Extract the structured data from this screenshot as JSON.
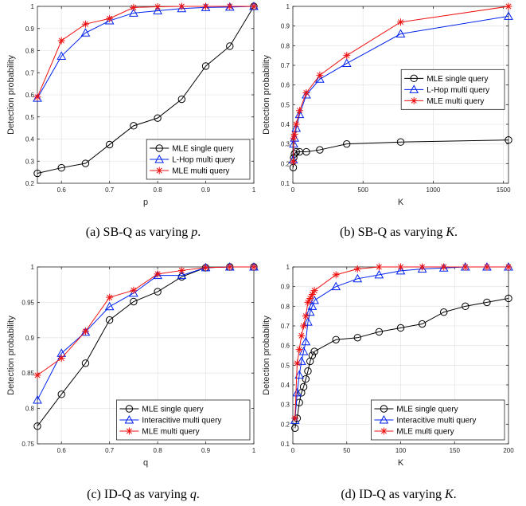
{
  "colors": {
    "series_black": "#000000",
    "series_blue": "#0022ee",
    "series_red": "#ee1111",
    "axis": "#262626",
    "grid": "#e6e6e6"
  },
  "chart_data": [
    {
      "type": "line",
      "caption": "(a) SB-Q as varying p.",
      "caption_prefix": "(a) SB-Q as varying ",
      "caption_var": "p",
      "caption_suffix": ".",
      "xlabel": "p",
      "ylabel": "Detection probability",
      "xlim": [
        0.55,
        1
      ],
      "ylim": [
        0.2,
        1
      ],
      "xticks": [
        0.6,
        0.7,
        0.8,
        0.9,
        1
      ],
      "xtick_labels": [
        "0.6",
        "0.7",
        "0.8",
        "0.9",
        "1"
      ],
      "yticks": [
        0.2,
        0.3,
        0.4,
        0.5,
        0.6,
        0.7,
        0.8,
        0.9,
        1
      ],
      "ytick_labels": [
        "0.2",
        "0.3",
        "0.4",
        "0.5",
        "0.6",
        "0.7",
        "0.8",
        "0.9",
        "1"
      ],
      "grid": true,
      "legend": "bottom-right",
      "series": [
        {
          "name": "MLE single query",
          "marker": "circle",
          "color": "#000000",
          "x": [
            0.55,
            0.6,
            0.65,
            0.7,
            0.75,
            0.8,
            0.85,
            0.9,
            0.95,
            1.0
          ],
          "y": [
            0.245,
            0.27,
            0.29,
            0.375,
            0.46,
            0.495,
            0.58,
            0.73,
            0.82,
            1.0
          ]
        },
        {
          "name": "L-Hop multi query",
          "marker": "triangle",
          "color": "#0022ee",
          "x": [
            0.55,
            0.6,
            0.65,
            0.7,
            0.75,
            0.8,
            0.85,
            0.9,
            0.95,
            1.0
          ],
          "y": [
            0.585,
            0.775,
            0.88,
            0.935,
            0.97,
            0.98,
            0.99,
            0.995,
            0.997,
            1.0
          ]
        },
        {
          "name": "MLE multi query",
          "marker": "star",
          "color": "#ee1111",
          "x": [
            0.55,
            0.6,
            0.65,
            0.7,
            0.75,
            0.8,
            0.85,
            0.9,
            0.95,
            1.0
          ],
          "y": [
            0.59,
            0.845,
            0.92,
            0.945,
            0.995,
            0.998,
            1.0,
            1.0,
            1.0,
            1.0
          ]
        }
      ]
    },
    {
      "type": "line",
      "caption": "(b) SB-Q as varying K.",
      "caption_prefix": "(b) SB-Q as varying ",
      "caption_var": "K",
      "caption_suffix": ".",
      "xlabel": "K",
      "ylabel": "Detection probability",
      "xlim": [
        0,
        1536
      ],
      "ylim": [
        0.1,
        1
      ],
      "xticks": [
        0,
        500,
        1000,
        1500
      ],
      "xtick_labels": [
        "0",
        "500",
        "1000",
        "1500"
      ],
      "yticks": [
        0.1,
        0.2,
        0.3,
        0.4,
        0.5,
        0.6,
        0.7,
        0.8,
        0.9,
        1
      ],
      "ytick_labels": [
        "0.1",
        "0.2",
        "0.3",
        "0.4",
        "0.5",
        "0.6",
        "0.7",
        "0.8",
        "0.9",
        "1"
      ],
      "grid": true,
      "legend": "middle-right",
      "series": [
        {
          "name": "MLE single query",
          "marker": "circle",
          "color": "#000000",
          "x": [
            3,
            6,
            12,
            24,
            48,
            96,
            192,
            384,
            768,
            1536
          ],
          "y": [
            0.18,
            0.23,
            0.25,
            0.26,
            0.26,
            0.26,
            0.27,
            0.3,
            0.31,
            0.32
          ]
        },
        {
          "name": "L-Hop multi query",
          "marker": "triangle",
          "color": "#0022ee",
          "x": [
            3,
            6,
            12,
            24,
            48,
            96,
            192,
            384,
            768,
            1536
          ],
          "y": [
            0.22,
            0.3,
            0.33,
            0.38,
            0.45,
            0.55,
            0.63,
            0.71,
            0.86,
            0.95
          ]
        },
        {
          "name": "MLE multi query",
          "marker": "star",
          "color": "#ee1111",
          "x": [
            3,
            6,
            12,
            24,
            48,
            96,
            192,
            384,
            768,
            1536
          ],
          "y": [
            0.21,
            0.33,
            0.35,
            0.4,
            0.47,
            0.56,
            0.65,
            0.75,
            0.92,
            1.0
          ]
        }
      ]
    },
    {
      "type": "line",
      "caption": "(c) ID-Q as varying q.",
      "caption_prefix": "(c) ID-Q as varying ",
      "caption_var": "q",
      "caption_suffix": ".",
      "xlabel": "q",
      "ylabel": "Detection probability",
      "xlim": [
        0.55,
        1
      ],
      "ylim": [
        0.75,
        1
      ],
      "xticks": [
        0.6,
        0.7,
        0.8,
        0.9,
        1
      ],
      "xtick_labels": [
        "0.6",
        "0.7",
        "0.8",
        "0.9",
        "1"
      ],
      "yticks": [
        0.75,
        0.8,
        0.85,
        0.9,
        0.95,
        1
      ],
      "ytick_labels": [
        "0.75",
        "0.8",
        "0.85",
        "0.9",
        "0.95",
        "1"
      ],
      "grid": true,
      "legend": "bottom-right",
      "series": [
        {
          "name": "MLE single query",
          "marker": "circle",
          "color": "#000000",
          "x": [
            0.55,
            0.6,
            0.65,
            0.7,
            0.75,
            0.8,
            0.85,
            0.9,
            0.95,
            1.0
          ],
          "y": [
            0.775,
            0.82,
            0.864,
            0.925,
            0.951,
            0.965,
            0.986,
            0.999,
            1.0,
            1.0
          ]
        },
        {
          "name": "Interacitive multi query",
          "marker": "triangle",
          "color": "#0022ee",
          "x": [
            0.55,
            0.6,
            0.65,
            0.7,
            0.75,
            0.8,
            0.85,
            0.9,
            0.95,
            1.0
          ],
          "y": [
            0.812,
            0.878,
            0.908,
            0.944,
            0.963,
            0.988,
            0.988,
            0.999,
            1.0,
            1.0
          ]
        },
        {
          "name": "MLE multi query",
          "marker": "star",
          "color": "#ee1111",
          "x": [
            0.55,
            0.6,
            0.65,
            0.7,
            0.75,
            0.8,
            0.85,
            0.9,
            0.95,
            1.0
          ],
          "y": [
            0.847,
            0.871,
            0.909,
            0.957,
            0.967,
            0.99,
            0.995,
            0.999,
            1.0,
            1.0
          ]
        }
      ]
    },
    {
      "type": "line",
      "caption": "(d) ID-Q as varying K.",
      "caption_prefix": "(d) ID-Q as varying ",
      "caption_var": "K",
      "caption_suffix": ".",
      "xlabel": "K",
      "ylabel": "Detection probability",
      "xlim": [
        0,
        200
      ],
      "ylim": [
        0.1,
        1
      ],
      "xticks": [
        0,
        50,
        100,
        150,
        200
      ],
      "xtick_labels": [
        "0",
        "50",
        "100",
        "150",
        "200"
      ],
      "yticks": [
        0.1,
        0.2,
        0.3,
        0.4,
        0.5,
        0.6,
        0.7,
        0.8,
        0.9,
        1
      ],
      "ytick_labels": [
        "0.1",
        "0.2",
        "0.3",
        "0.4",
        "0.5",
        "0.6",
        "0.7",
        "0.8",
        "0.9",
        "1"
      ],
      "grid": true,
      "legend": "bottom-right",
      "series": [
        {
          "name": "MLE single query",
          "marker": "circle",
          "color": "#000000",
          "x": [
            2,
            4,
            6,
            8,
            10,
            12,
            14,
            16,
            18,
            20,
            40,
            60,
            80,
            100,
            120,
            140,
            160,
            180,
            200
          ],
          "y": [
            0.18,
            0.23,
            0.31,
            0.36,
            0.39,
            0.43,
            0.47,
            0.52,
            0.55,
            0.57,
            0.63,
            0.64,
            0.67,
            0.69,
            0.71,
            0.77,
            0.8,
            0.82,
            0.84
          ]
        },
        {
          "name": "Interacitive multi query",
          "marker": "triangle",
          "color": "#0022ee",
          "x": [
            2,
            4,
            6,
            8,
            10,
            12,
            14,
            16,
            18,
            20,
            40,
            60,
            80,
            100,
            120,
            140,
            160,
            180,
            200
          ],
          "y": [
            0.22,
            0.36,
            0.45,
            0.52,
            0.57,
            0.62,
            0.72,
            0.77,
            0.8,
            0.83,
            0.9,
            0.94,
            0.96,
            0.98,
            0.99,
            0.995,
            1.0,
            1.0,
            1.0
          ]
        },
        {
          "name": "MLE multi query",
          "marker": "star",
          "color": "#ee1111",
          "x": [
            2,
            4,
            6,
            8,
            10,
            12,
            14,
            16,
            18,
            20,
            40,
            60,
            80,
            100,
            120,
            140,
            160,
            180,
            200
          ],
          "y": [
            0.23,
            0.51,
            0.58,
            0.65,
            0.7,
            0.75,
            0.82,
            0.84,
            0.86,
            0.88,
            0.96,
            0.99,
            1.0,
            1.0,
            1.0,
            1.0,
            1.0,
            1.0,
            1.0
          ]
        }
      ]
    }
  ]
}
